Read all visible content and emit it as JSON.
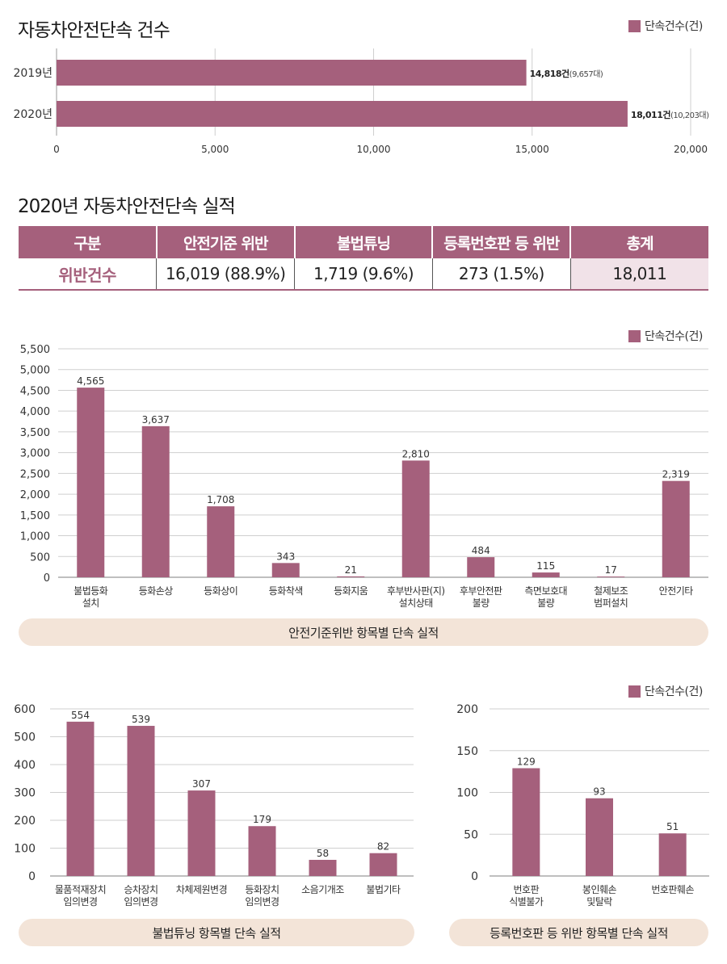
{
  "legend_label": "단속건수(건)",
  "section1": {
    "title": "자동차안전단속 건수",
    "chart_data": {
      "type": "bar",
      "orientation": "horizontal",
      "categories": [
        "2019년",
        "2020년"
      ],
      "values": [
        14818,
        18011
      ],
      "data_labels_bold": [
        "14,818건",
        "18,011건"
      ],
      "data_labels_sub": [
        "(9,657대)",
        "(10,203대)"
      ],
      "xlim": [
        0,
        20000
      ],
      "xticks": [
        "0",
        "5,000",
        "10,000",
        "15,000",
        "20,000"
      ],
      "legend": "단속건수(건)",
      "legend_position": "top-right",
      "grid": true,
      "bar_color": "#a5607c"
    }
  },
  "section2": {
    "title": "2020년 자동차안전단속 실적",
    "table": {
      "headers": [
        "구분",
        "안전기준 위반",
        "불법튜닝",
        "등록번호판 등 위반",
        "총계"
      ],
      "row": [
        "위반건수",
        "16,019 (88.9%)",
        "1,719 (9.6%)",
        "273 (1.5%)",
        "18,011"
      ]
    }
  },
  "chart1": {
    "caption": "안전기준위반 항목별 단속 실적",
    "chart_data": {
      "type": "bar",
      "categories": [
        "불법등화|설치",
        "등화손상",
        "등화상이",
        "등화착색",
        "등화지움",
        "후부반사판(지)|설치상태",
        "후부안전판|불량",
        "측면보호대|불량",
        "철제보조|범퍼설치",
        "안전기타"
      ],
      "values": [
        4565,
        3637,
        1708,
        343,
        21,
        2810,
        484,
        115,
        17,
        2319
      ],
      "value_labels": [
        "4,565",
        "3,637",
        "1,708",
        "343",
        "21",
        "2,810",
        "484",
        "115",
        "17",
        "2,319"
      ],
      "ylim": [
        0,
        5500
      ],
      "yticks": [
        "0",
        "500",
        "1,000",
        "1,500",
        "2,000",
        "2,500",
        "3,000",
        "3,500",
        "4,000",
        "4,500",
        "5,000",
        "5,500"
      ],
      "legend": "단속건수(건)",
      "legend_position": "top-right",
      "grid": true,
      "bar_color": "#a5607c"
    }
  },
  "chart2": {
    "caption": "불법튜닝 항목별 단속 실적",
    "chart_data": {
      "type": "bar",
      "categories": [
        "물품적재장치|임의변경",
        "승차장치|임의변경",
        "차체제원변경",
        "등화장치|임의변경",
        "소음기개조",
        "불법기타"
      ],
      "values": [
        554,
        539,
        307,
        179,
        58,
        82
      ],
      "value_labels": [
        "554",
        "539",
        "307",
        "179",
        "58",
        "82"
      ],
      "ylim": [
        0,
        600
      ],
      "yticks": [
        "0",
        "100",
        "200",
        "300",
        "400",
        "500",
        "600"
      ],
      "grid": true,
      "bar_color": "#a5607c"
    }
  },
  "chart3": {
    "caption": "등록번호판 등 위반 항목별 단속 실적",
    "chart_data": {
      "type": "bar",
      "categories": [
        "번호판|식별불가",
        "봉인훼손|및탈락",
        "번호판훼손"
      ],
      "values": [
        129,
        93,
        51
      ],
      "value_labels": [
        "129",
        "93",
        "51"
      ],
      "ylim": [
        0,
        200
      ],
      "yticks": [
        "0",
        "50",
        "100",
        "150",
        "200"
      ],
      "legend": "단속건수(건)",
      "legend_position": "top-right",
      "grid": true,
      "bar_color": "#a5607c"
    }
  }
}
